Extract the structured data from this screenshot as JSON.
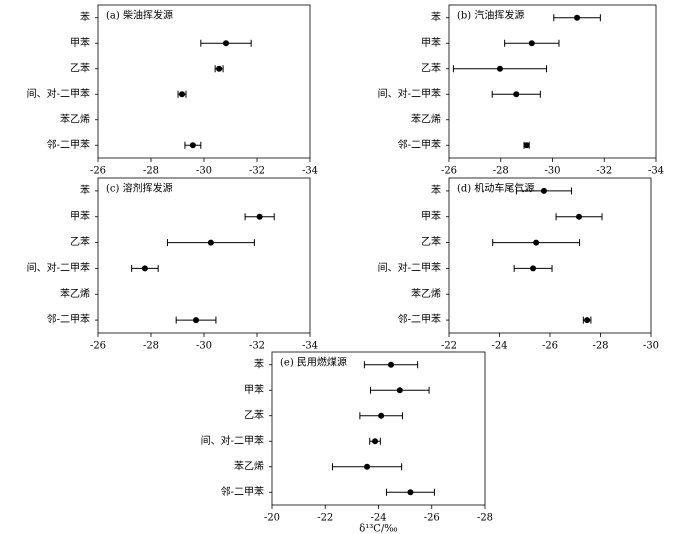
{
  "chart_data": [
    {
      "type": "dot",
      "title": "(a) 柴油挥发源",
      "color": "#000000",
      "categories": [
        "苯",
        "甲苯",
        "乙苯",
        "间、对-二甲苯",
        "苯乙烯",
        "邻-二甲苯"
      ],
      "values": [
        null,
        -30.83,
        -30.57,
        -29.17,
        null,
        -29.58
      ],
      "errors": [
        null,
        0.95,
        0.15,
        0.15,
        null,
        0.3
      ],
      "xlim": [
        -26,
        -34
      ],
      "xticks": [
        -26,
        -28,
        -30,
        -32,
        -34
      ]
    },
    {
      "type": "dot",
      "title": "(b) 汽油挥发源",
      "color": "#000000",
      "categories": [
        "苯",
        "甲苯",
        "乙苯",
        "间、对-二甲苯",
        "苯乙烯",
        "邻-二甲苯"
      ],
      "values": [
        -30.95,
        -29.2,
        -27.97,
        -28.6,
        null,
        -29.0
      ],
      "errors": [
        0.9,
        1.05,
        1.8,
        0.93,
        null,
        0.1
      ],
      "xlim": [
        -26,
        -34
      ],
      "xticks": [
        -26,
        -28,
        -30,
        -32,
        -34
      ]
    },
    {
      "type": "dot",
      "title": "(c) 溶剂挥发源",
      "color": "#000000",
      "categories": [
        "苯",
        "甲苯",
        "乙苯",
        "间、对-二甲苯",
        "苯乙烯",
        "邻-二甲苯"
      ],
      "values": [
        null,
        -32.1,
        -30.26,
        -27.77,
        null,
        -29.7
      ],
      "errors": [
        null,
        0.55,
        1.64,
        0.5,
        null,
        0.75
      ],
      "xlim": [
        -26,
        -34
      ],
      "xticks": [
        -26,
        -28,
        -30,
        -32,
        -34
      ]
    },
    {
      "type": "dot",
      "title": "(d) 机动车尾气源",
      "color": "#000000",
      "categories": [
        "苯",
        "甲苯",
        "乙苯",
        "间、对-二甲苯",
        "苯乙烯",
        "邻-二甲苯"
      ],
      "values": [
        -25.76,
        -27.15,
        -25.45,
        -25.33,
        null,
        -27.47
      ],
      "errors": [
        1.09,
        0.91,
        1.72,
        0.75,
        null,
        0.15
      ],
      "xlim": [
        -22,
        -30
      ],
      "xticks": [
        -22,
        -24,
        -26,
        -28,
        -30
      ]
    },
    {
      "type": "dot",
      "title": "(e) 民用燃煤源",
      "color": "#000000",
      "xlabel": "δ¹³C/‰",
      "categories": [
        "苯",
        "甲苯",
        "乙苯",
        "间、对-二甲苯",
        "苯乙烯",
        "邻-二甲苯"
      ],
      "values": [
        -24.47,
        -24.8,
        -24.1,
        -23.87,
        -23.57,
        -25.2
      ],
      "errors": [
        1.0,
        1.1,
        0.8,
        0.2,
        1.3,
        0.9
      ],
      "xlim": [
        -20,
        -28
      ],
      "xticks": [
        -20,
        -22,
        -24,
        -26,
        -28
      ]
    }
  ]
}
